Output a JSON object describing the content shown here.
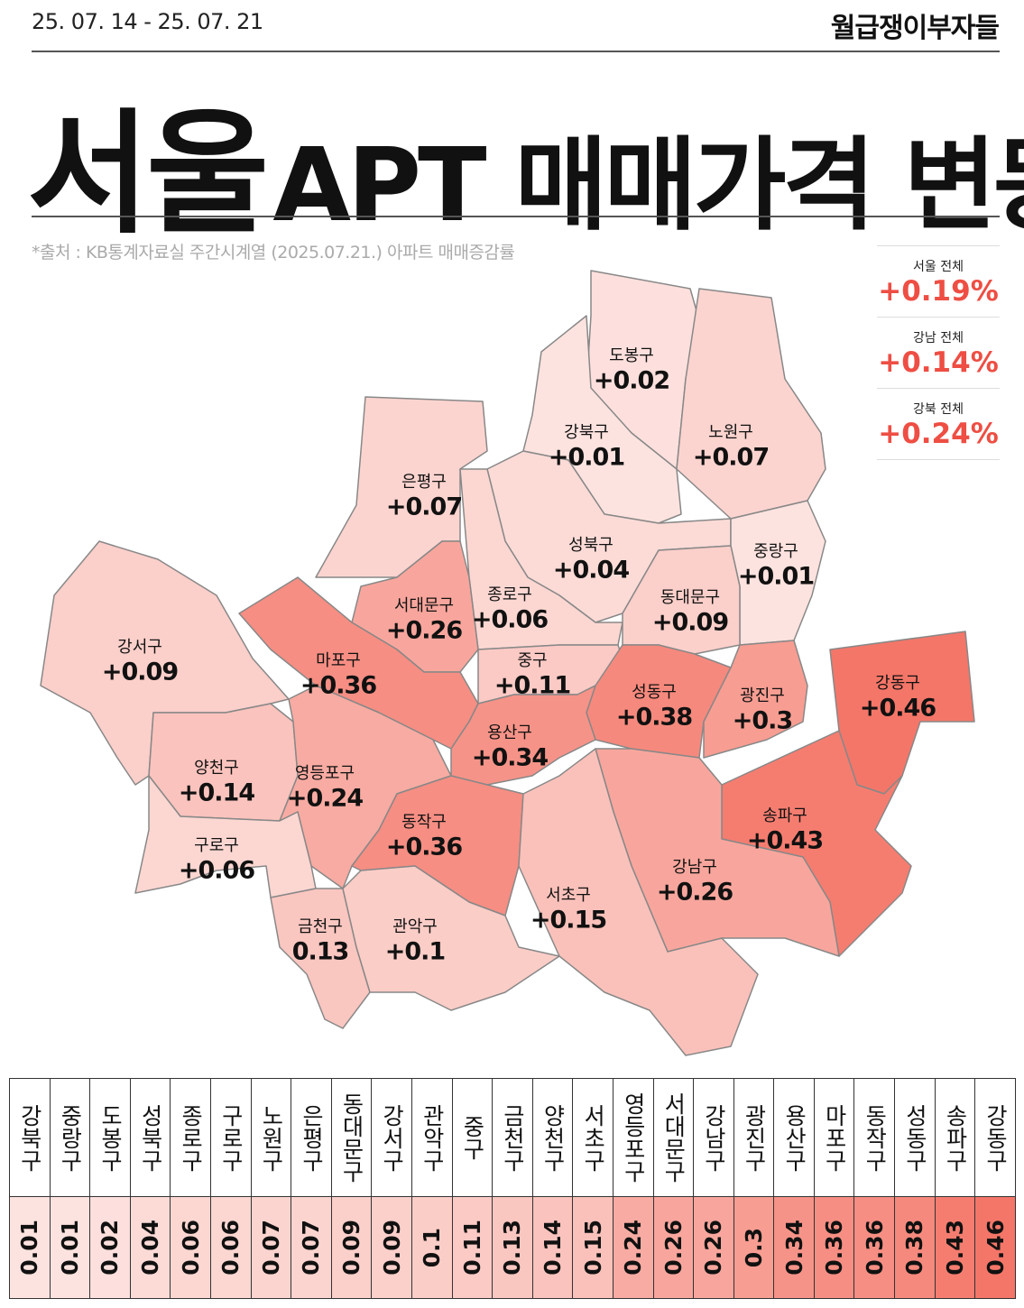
{
  "header": {
    "date_range": "25. 07. 14 - 25. 07. 21",
    "brand": "월급쟁이부자들"
  },
  "title": {
    "region": "서울",
    "rest": "APT 매매가격 변동"
  },
  "source": "*출처 : KB통계자료실 주간시계열 (2025.07.21.) 아파트 매매증감률",
  "summary": [
    {
      "name": "서울 전체",
      "label": "+0.19%"
    },
    {
      "name": "강남 전체",
      "label": "+0.14%"
    },
    {
      "name": "강북 전체",
      "label": "+0.24%"
    }
  ],
  "districts": [
    {
      "name": "도봉구",
      "value": 0.02,
      "label": "+0.02"
    },
    {
      "name": "노원구",
      "value": 0.07,
      "label": "+0.07"
    },
    {
      "name": "강북구",
      "value": 0.01,
      "label": "+0.01"
    },
    {
      "name": "은평구",
      "value": 0.07,
      "label": "+0.07"
    },
    {
      "name": "성북구",
      "value": 0.04,
      "label": "+0.04"
    },
    {
      "name": "중랑구",
      "value": 0.01,
      "label": "+0.01"
    },
    {
      "name": "종로구",
      "value": 0.06,
      "label": "+0.06"
    },
    {
      "name": "서대문구",
      "value": 0.26,
      "label": "+0.26"
    },
    {
      "name": "동대문구",
      "value": 0.09,
      "label": "+0.09"
    },
    {
      "name": "강서구",
      "value": 0.09,
      "label": "+0.09"
    },
    {
      "name": "마포구",
      "value": 0.36,
      "label": "+0.36"
    },
    {
      "name": "중구",
      "value": 0.11,
      "label": "+0.11"
    },
    {
      "name": "성동구",
      "value": 0.38,
      "label": "+0.38"
    },
    {
      "name": "광진구",
      "value": 0.3,
      "label": "+0.3"
    },
    {
      "name": "용산구",
      "value": 0.34,
      "label": "+0.34"
    },
    {
      "name": "양천구",
      "value": 0.14,
      "label": "+0.14"
    },
    {
      "name": "영등포구",
      "value": 0.24,
      "label": "+0.24"
    },
    {
      "name": "구로구",
      "value": 0.06,
      "label": "+0.06"
    },
    {
      "name": "동작구",
      "value": 0.36,
      "label": "+0.36"
    },
    {
      "name": "강동구",
      "value": 0.46,
      "label": "+0.46"
    },
    {
      "name": "송파구",
      "value": 0.43,
      "label": "+0.43"
    },
    {
      "name": "강남구",
      "value": 0.26,
      "label": "+0.26"
    },
    {
      "name": "서초구",
      "value": 0.15,
      "label": "+0.15"
    },
    {
      "name": "금천구",
      "value": 0.13,
      "label": "0.13"
    },
    {
      "name": "관악구",
      "value": 0.1,
      "label": "+0.1"
    }
  ],
  "table": {
    "headers": [
      "강북구",
      "중랑구",
      "도봉구",
      "성북구",
      "종로구",
      "구로구",
      "노원구",
      "은평구",
      "동대문구",
      "강서구",
      "관악구",
      "중구",
      "금천구",
      "양천구",
      "서초구",
      "영등포구",
      "서대문구",
      "강남구",
      "광진구",
      "용산구",
      "마포구",
      "동작구",
      "성동구",
      "송파구",
      "강동구"
    ],
    "values": [
      0.01,
      0.01,
      0.02,
      0.04,
      0.06,
      0.06,
      0.07,
      0.07,
      0.09,
      0.09,
      0.1,
      0.11,
      0.13,
      0.14,
      0.15,
      0.24,
      0.26,
      0.26,
      0.3,
      0.34,
      0.36,
      0.36,
      0.38,
      0.43,
      0.46
    ]
  }
}
